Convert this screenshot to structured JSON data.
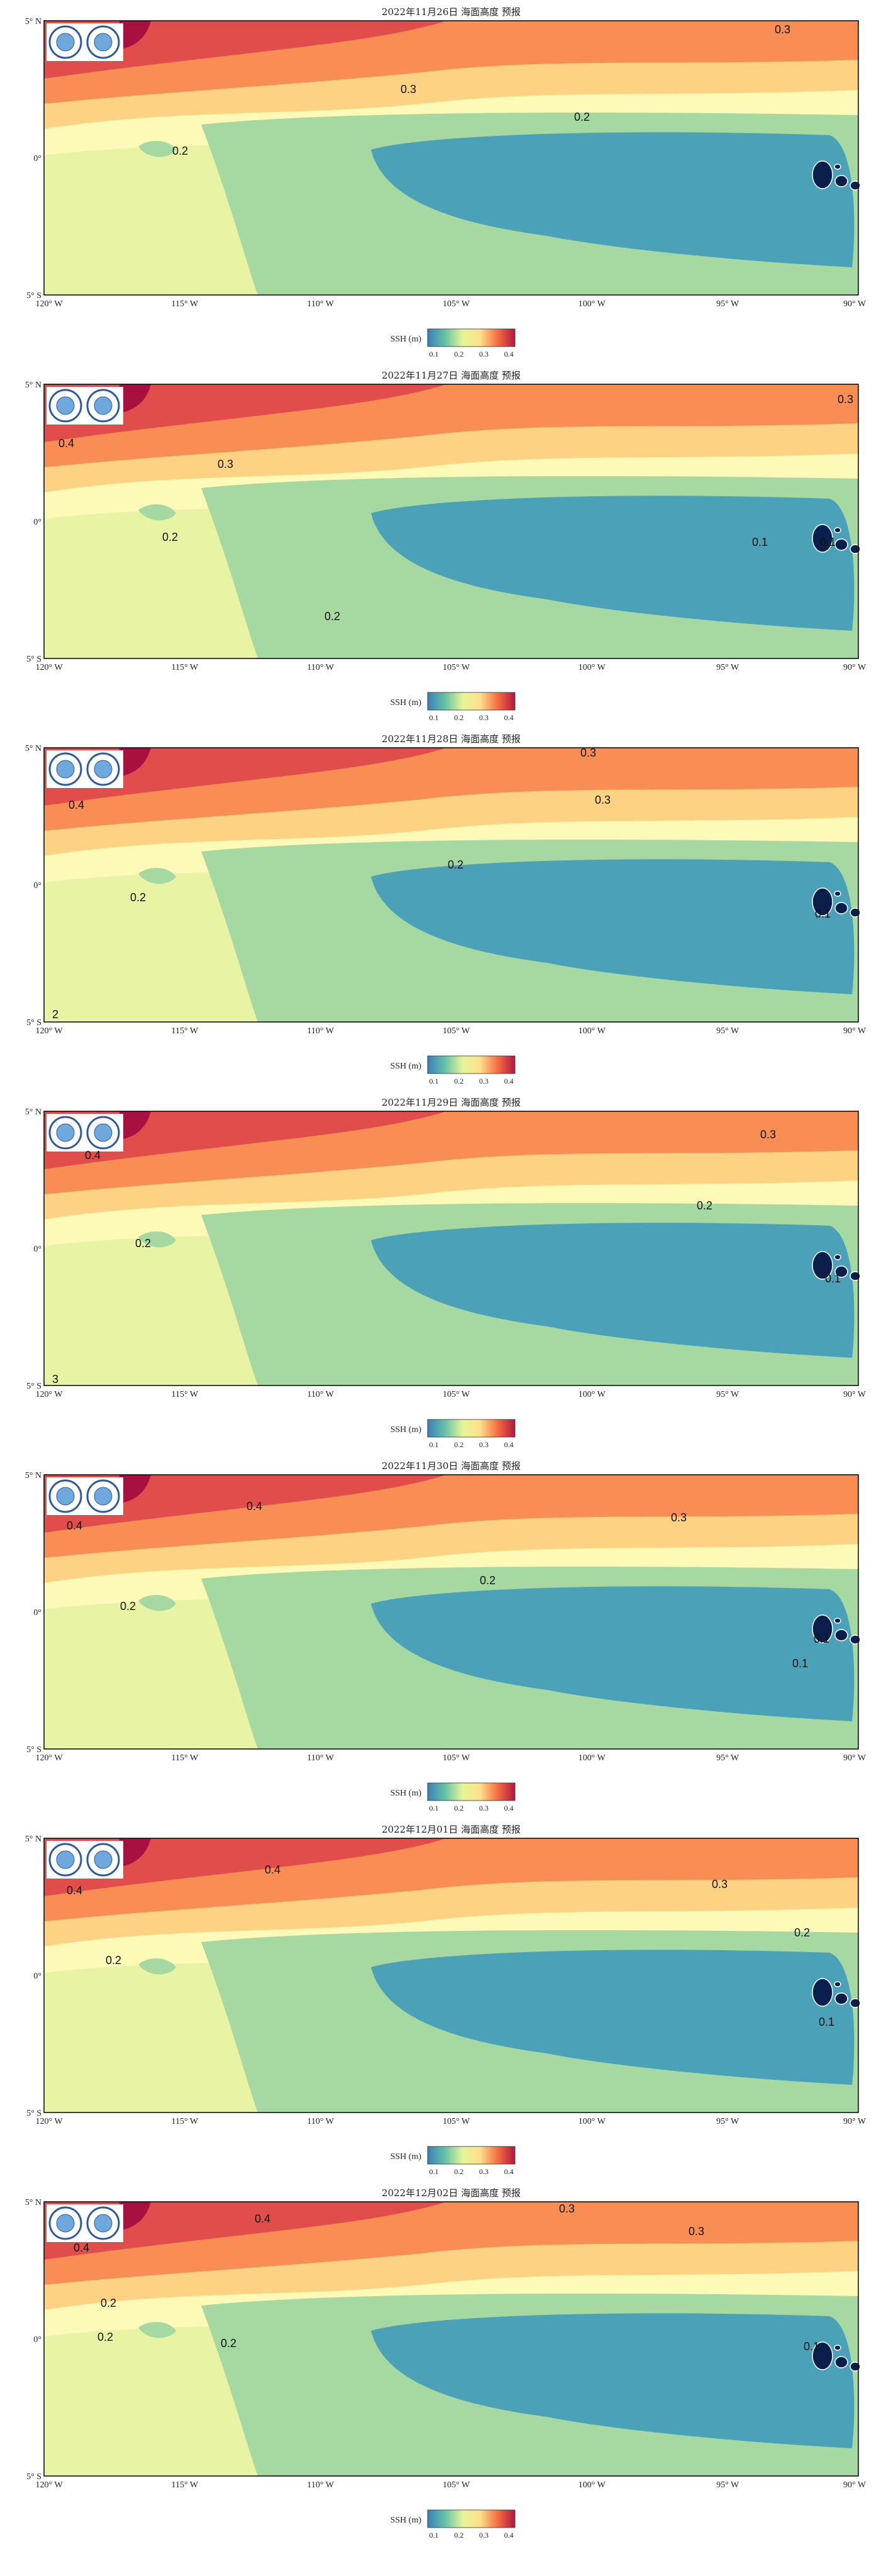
{
  "panels": [
    {
      "title": "2022年11月26日 海面高度 预报",
      "contour_labels": [
        "0.3",
        "0.3",
        "0.2",
        "0.2"
      ]
    },
    {
      "title": "2022年11月27日 海面高度 预报",
      "contour_labels": [
        "0.3",
        "0.4",
        "0.3",
        "0.2",
        "0.1",
        "0.1",
        "0.2"
      ]
    },
    {
      "title": "2022年11月28日 海面高度 预报",
      "contour_labels": [
        "0.3",
        "0.4",
        "0.3",
        "0.2",
        "0.2",
        "0.1",
        "2"
      ]
    },
    {
      "title": "2022年11月29日 海面高度 预报",
      "contour_labels": [
        "0.4",
        "0.3",
        "0.2",
        "0.2",
        "0.1",
        "3"
      ]
    },
    {
      "title": "2022年11月30日 海面高度 预报",
      "contour_labels": [
        "0.4",
        "0.4",
        "0.3",
        "0.2",
        "0.2",
        "0.1",
        "0.1"
      ]
    },
    {
      "title": "2022年12月01日 海面高度 预报",
      "contour_labels": [
        "0.4",
        "0.4",
        "0.3",
        "0.2",
        "0.2",
        "0.1"
      ]
    },
    {
      "title": "2022年12月02日 海面高度 预报",
      "contour_labels": [
        "0.3",
        "0.3",
        "0.4",
        "0.4",
        "0.2",
        "0.2",
        "0.2",
        "0.1"
      ]
    }
  ],
  "axes": {
    "lon_labels": [
      "120° W",
      "115° W",
      "110° W",
      "105° W",
      "100° W",
      "95° W",
      "90° W"
    ],
    "lat_labels": [
      "5° N",
      "0°",
      "5° S"
    ]
  },
  "colorbar": {
    "label": "SSH (m)",
    "ticks": [
      "0.1",
      "0.2",
      "0.3",
      "0.4"
    ]
  }
}
